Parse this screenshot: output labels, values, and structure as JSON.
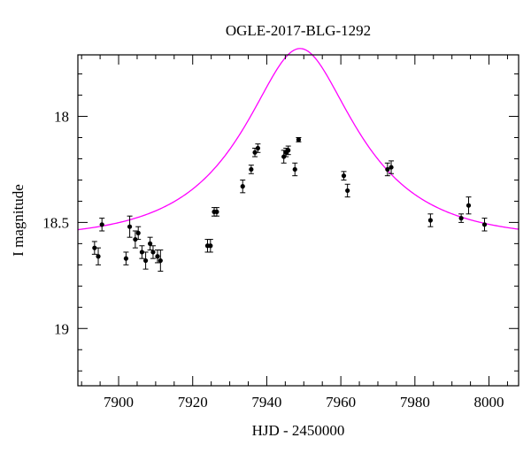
{
  "chart_data": {
    "type": "scatter",
    "title": "OGLE-2017-BLG-1292",
    "xlabel": "HJD - 2450000",
    "ylabel": "I magnitude",
    "xlim": [
      7889,
      8008
    ],
    "ylim": [
      19.27,
      17.71
    ],
    "y_inverted": true,
    "grid": false,
    "x_ticks": [
      7900,
      7920,
      7940,
      7960,
      7980,
      8000
    ],
    "x_tick_labels": [
      "7900",
      "7920",
      "7940",
      "7960",
      "7980",
      "8000"
    ],
    "y_ticks": [
      18,
      18.5,
      19
    ],
    "y_tick_labels": [
      "18",
      "18.5",
      "19"
    ],
    "x_minor_step": 5,
    "y_minor_step": 0.1,
    "colors": {
      "points": "#000000",
      "model": "#ff00ff",
      "axes": "#000000"
    },
    "series": [
      {
        "kind": "points-with-errorbars",
        "points": [
          {
            "x": 7893.5,
            "y": 18.62,
            "err": 0.03
          },
          {
            "x": 7894.5,
            "y": 18.66,
            "err": 0.04
          },
          {
            "x": 7895.5,
            "y": 18.51,
            "err": 0.03
          },
          {
            "x": 7902.0,
            "y": 18.67,
            "err": 0.03
          },
          {
            "x": 7903.0,
            "y": 18.52,
            "err": 0.05
          },
          {
            "x": 7904.5,
            "y": 18.58,
            "err": 0.04
          },
          {
            "x": 7905.3,
            "y": 18.55,
            "err": 0.03
          },
          {
            "x": 7906.3,
            "y": 18.64,
            "err": 0.03
          },
          {
            "x": 7907.3,
            "y": 18.68,
            "err": 0.04
          },
          {
            "x": 7908.5,
            "y": 18.6,
            "err": 0.03
          },
          {
            "x": 7909.3,
            "y": 18.64,
            "err": 0.03
          },
          {
            "x": 7910.5,
            "y": 18.66,
            "err": 0.03
          },
          {
            "x": 7911.3,
            "y": 18.68,
            "err": 0.05
          },
          {
            "x": 7924.0,
            "y": 18.61,
            "err": 0.03
          },
          {
            "x": 7924.8,
            "y": 18.61,
            "err": 0.03
          },
          {
            "x": 7925.8,
            "y": 18.45,
            "err": 0.02
          },
          {
            "x": 7926.5,
            "y": 18.45,
            "err": 0.02
          },
          {
            "x": 7933.5,
            "y": 18.33,
            "err": 0.03
          },
          {
            "x": 7935.8,
            "y": 18.25,
            "err": 0.02
          },
          {
            "x": 7936.8,
            "y": 18.17,
            "err": 0.02
          },
          {
            "x": 7937.6,
            "y": 18.15,
            "err": 0.02
          },
          {
            "x": 7944.6,
            "y": 18.19,
            "err": 0.03
          },
          {
            "x": 7945.2,
            "y": 18.17,
            "err": 0.02
          },
          {
            "x": 7945.8,
            "y": 18.16,
            "err": 0.02
          },
          {
            "x": 7947.6,
            "y": 18.25,
            "err": 0.03
          },
          {
            "x": 7948.6,
            "y": 18.11,
            "err": 0.01
          },
          {
            "x": 7960.8,
            "y": 18.28,
            "err": 0.02
          },
          {
            "x": 7961.8,
            "y": 18.35,
            "err": 0.03
          },
          {
            "x": 7972.6,
            "y": 18.25,
            "err": 0.03
          },
          {
            "x": 7973.6,
            "y": 18.24,
            "err": 0.03
          },
          {
            "x": 7984.2,
            "y": 18.49,
            "err": 0.03
          },
          {
            "x": 7992.5,
            "y": 18.48,
            "err": 0.02
          },
          {
            "x": 7994.5,
            "y": 18.42,
            "err": 0.04
          },
          {
            "x": 7998.8,
            "y": 18.51,
            "err": 0.03
          }
        ]
      },
      {
        "kind": "model-curve",
        "model": {
          "t0": 7949.0,
          "u0": 0.45,
          "tE": 28.0,
          "base_mag": 18.58,
          "fs": 0.93
        },
        "x_range": [
          7889,
          8008
        ]
      }
    ]
  }
}
